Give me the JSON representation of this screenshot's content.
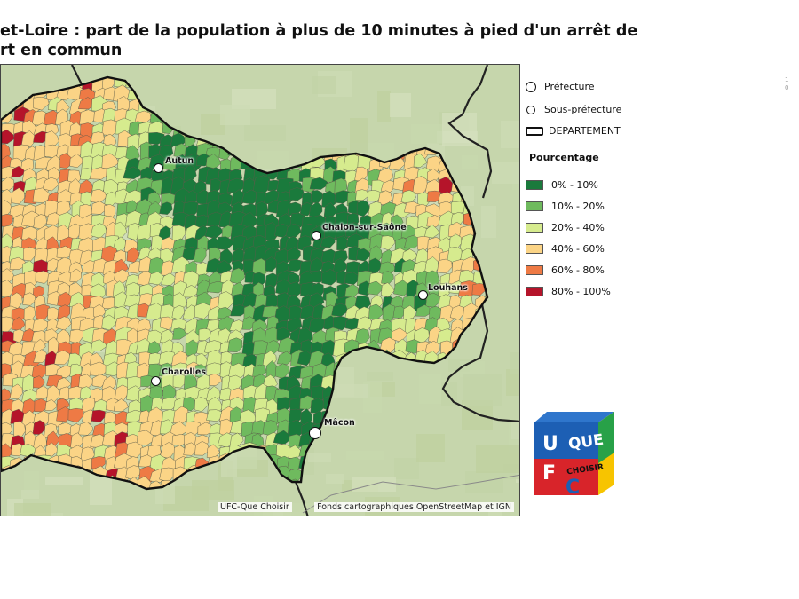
{
  "title": {
    "line1": "et-Loire : part de la population à plus de 10 minutes à pied d'un arrêt de",
    "line2": "rt en commun"
  },
  "map": {
    "cities": [
      {
        "name": "Autun",
        "type": "sous-prefecture"
      },
      {
        "name": "Chalon-sur-Saône",
        "type": "sous-prefecture"
      },
      {
        "name": "Louhans",
        "type": "sous-prefecture"
      },
      {
        "name": "Charolles",
        "type": "sous-prefecture"
      },
      {
        "name": "Mâcon",
        "type": "prefecture"
      }
    ],
    "credit_left": "UFC-Que Choisir",
    "credit_right": "Fonds cartographiques OpenStreetMap et IGN"
  },
  "legend": {
    "prefecture": "Préfecture",
    "sous_prefecture": "Sous-préfecture",
    "departement": "DEPARTEMENT",
    "heading": "Pourcentage",
    "classes": [
      {
        "label": "0% - 10%",
        "color": "#1a7a3c"
      },
      {
        "label": "10% - 20%",
        "color": "#6fba5e"
      },
      {
        "label": "20% - 40%",
        "color": "#d6eb8e"
      },
      {
        "label": "40% - 60%",
        "color": "#fbd486"
      },
      {
        "label": "60% - 80%",
        "color": "#ee7a45"
      },
      {
        "label": "80% - 100%",
        "color": "#b5142a"
      }
    ]
  },
  "logo": {
    "letters": [
      "U",
      "F",
      "C"
    ],
    "que": "QUE",
    "choisir": "CHOISIR",
    "colors": {
      "blue": "#1d5fb4",
      "red": "#d8242a",
      "yellow": "#f7c400",
      "green": "#28a148"
    }
  },
  "page_number": {
    "top": "1",
    "bottom": "0"
  }
}
